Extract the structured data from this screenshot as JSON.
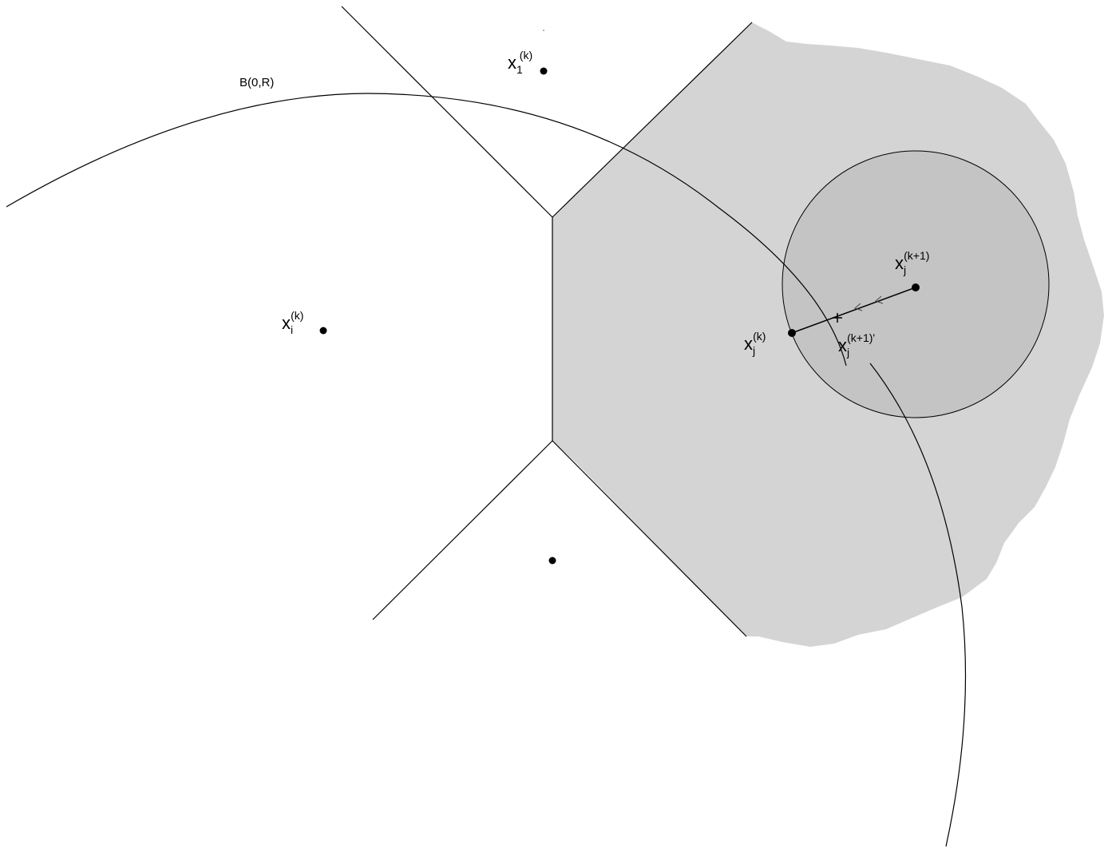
{
  "labels": {
    "ball": "B(0,R)",
    "x1": {
      "base": "x",
      "sub": "1",
      "sup": "(k)"
    },
    "xi": {
      "base": "x",
      "sub": "i",
      "sup": "(k)"
    },
    "xj": {
      "base": "x",
      "sub": "j",
      "sup": "(k)"
    },
    "xj_next": {
      "base": "x",
      "sub": "j",
      "sup": "(k+1)"
    },
    "xj_proj": {
      "base": "x",
      "sub": "j",
      "sup": "(k+1)'"
    }
  },
  "colors": {
    "region_fill": "#d4d4d4",
    "disk_fill": "#c4c4c4",
    "line": "#000000"
  }
}
